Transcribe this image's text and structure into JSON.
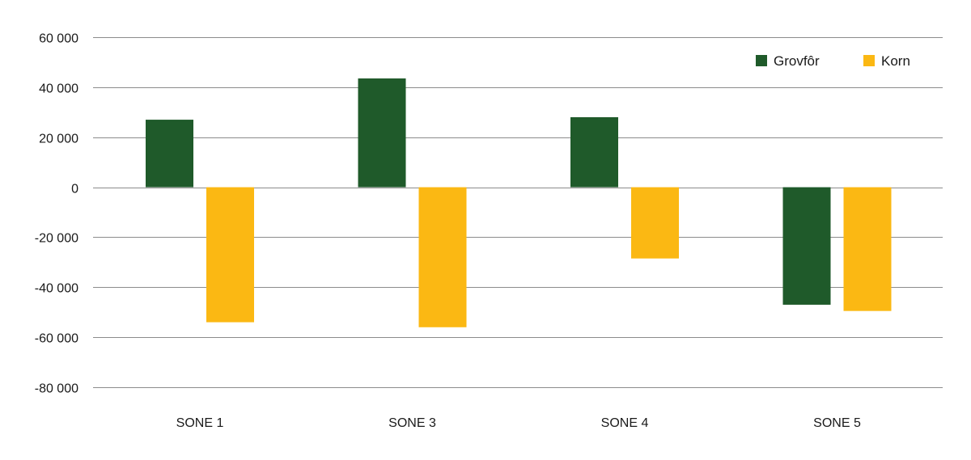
{
  "chart_data": {
    "type": "bar",
    "categories": [
      "SONE 1",
      "SONE 3",
      "SONE 4",
      "SONE 5"
    ],
    "series": [
      {
        "name": "Grovfôr",
        "color": "#1f5a2a",
        "values": [
          27000,
          43500,
          28000,
          -47000
        ]
      },
      {
        "name": "Korn",
        "color": "#fbb813",
        "values": [
          -54000,
          -56000,
          -28500,
          -49500
        ]
      }
    ],
    "ylim": [
      -80000,
      60000
    ],
    "yticks": [
      60000,
      40000,
      20000,
      0,
      -20000,
      -40000,
      -60000,
      -80000
    ],
    "ytick_labels": [
      "60 000",
      "40 000",
      "20 000",
      "0",
      "-20 000",
      "-40 000",
      "-60 000",
      "-80 000"
    ],
    "grid": true,
    "legend_position": "top-right",
    "title": "",
    "xlabel": "",
    "ylabel": ""
  }
}
